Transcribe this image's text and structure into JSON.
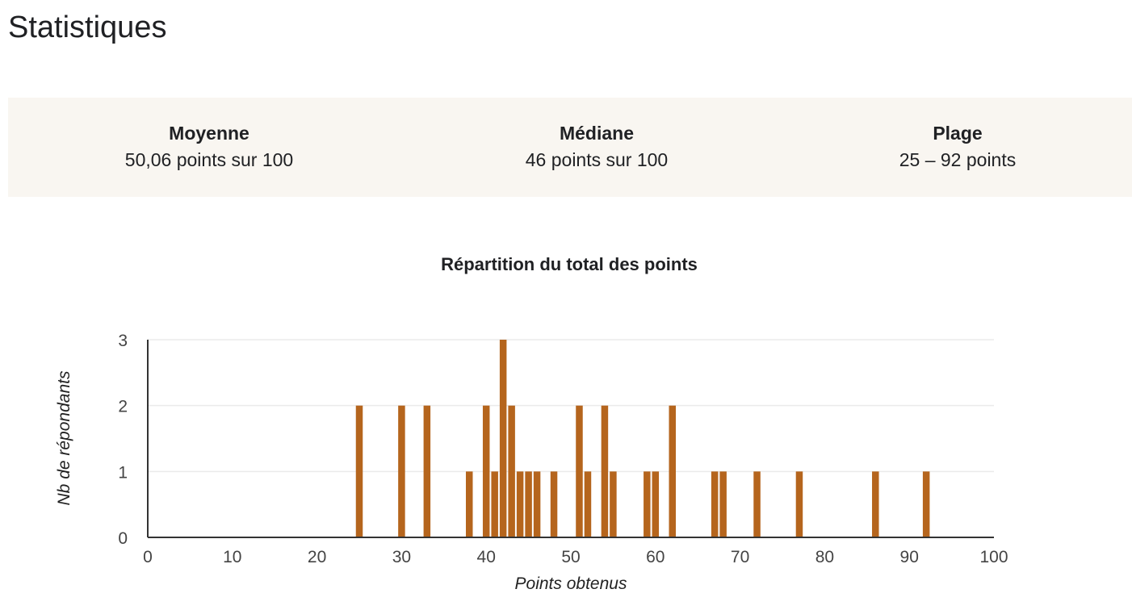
{
  "page": {
    "title": "Statistiques"
  },
  "stats": [
    {
      "label": "Moyenne",
      "value": "50,06 points sur 100"
    },
    {
      "label": "Médiane",
      "value": "46 points sur 100"
    },
    {
      "label": "Plage",
      "value": "25 – 92 points"
    }
  ],
  "colors": {
    "bar": "#b5651d",
    "panel_background": "#f9f6f1",
    "gridline": "#ebebeb",
    "axis": "#333333",
    "tick_text": "#444444"
  },
  "chart_data": {
    "type": "bar",
    "title": "Répartition du total des points",
    "xlabel": "Points obtenus",
    "ylabel": "Nb de répondants",
    "xlim": [
      0,
      100
    ],
    "ylim": [
      0,
      3
    ],
    "xticks": [
      0,
      10,
      20,
      30,
      40,
      50,
      60,
      70,
      80,
      90,
      100
    ],
    "yticks": [
      0,
      1,
      2,
      3
    ],
    "grid": true,
    "legend": "none",
    "x": [
      25,
      30,
      33,
      38,
      40,
      41,
      42,
      43,
      44,
      45,
      46,
      48,
      51,
      52,
      54,
      55,
      59,
      60,
      62,
      67,
      68,
      72,
      77,
      86,
      92
    ],
    "values": [
      2,
      2,
      2,
      1,
      2,
      1,
      3,
      2,
      1,
      1,
      1,
      1,
      2,
      1,
      2,
      1,
      1,
      1,
      2,
      1,
      1,
      1,
      1,
      1,
      1
    ]
  }
}
